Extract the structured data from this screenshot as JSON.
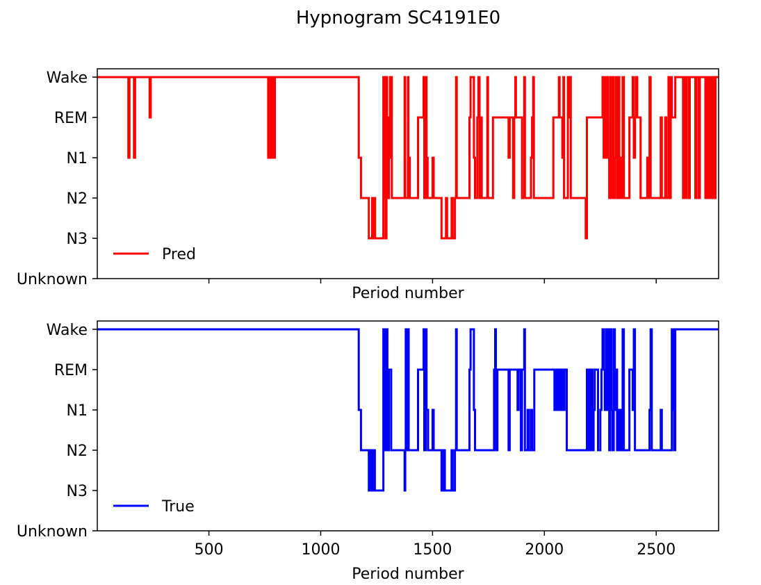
{
  "chart_data": {
    "type": "line",
    "title": "Hypnogram SC4191E0",
    "stage_order": [
      "Unknown",
      "N3",
      "N2",
      "N1",
      "REM",
      "Wake"
    ],
    "xlim": [
      1,
      2779
    ],
    "xticks": [
      500,
      1000,
      1500,
      2000,
      2500
    ],
    "subplots": [
      {
        "id": "pred",
        "xlabel": "Period number",
        "show_xtick_labels": false,
        "color": "#ff0000",
        "legend": {
          "label": "Pred",
          "loc": "lower-left"
        },
        "step_segments": [
          [
            1,
            "Wake"
          ],
          [
            140,
            "N1"
          ],
          [
            145,
            "Wake"
          ],
          [
            165,
            "N1"
          ],
          [
            170,
            "Wake"
          ],
          [
            235,
            "REM"
          ],
          [
            240,
            "Wake"
          ],
          [
            765,
            "N1"
          ],
          [
            770,
            "Wake"
          ],
          [
            772,
            "N1"
          ],
          [
            777,
            "Wake"
          ],
          [
            780,
            "N1"
          ],
          [
            785,
            "Wake"
          ],
          [
            788,
            "N1"
          ],
          [
            795,
            "Wake"
          ],
          [
            1170,
            "N1"
          ],
          [
            1180,
            "N2"
          ],
          [
            1215,
            "N3"
          ],
          [
            1230,
            "N2"
          ],
          [
            1233,
            "N3"
          ],
          [
            1240,
            "N2"
          ],
          [
            1243,
            "N3"
          ],
          [
            1280,
            "Wake"
          ],
          [
            1283,
            "N2"
          ],
          [
            1288,
            "Wake"
          ],
          [
            1290,
            "N3"
          ],
          [
            1294,
            "Wake"
          ],
          [
            1297,
            "N2"
          ],
          [
            1305,
            "REM"
          ],
          [
            1310,
            "Wake"
          ],
          [
            1312,
            "N1"
          ],
          [
            1315,
            "Wake"
          ],
          [
            1318,
            "N2"
          ],
          [
            1375,
            "Wake"
          ],
          [
            1378,
            "N2"
          ],
          [
            1390,
            "Wake"
          ],
          [
            1392,
            "N1"
          ],
          [
            1398,
            "N2"
          ],
          [
            1435,
            "REM"
          ],
          [
            1460,
            "Wake"
          ],
          [
            1463,
            "N2"
          ],
          [
            1470,
            "Wake"
          ],
          [
            1473,
            "N1"
          ],
          [
            1478,
            "N2"
          ],
          [
            1500,
            "N1"
          ],
          [
            1505,
            "N2"
          ],
          [
            1540,
            "N3"
          ],
          [
            1560,
            "N2"
          ],
          [
            1565,
            "N3"
          ],
          [
            1585,
            "N2"
          ],
          [
            1590,
            "N3"
          ],
          [
            1600,
            "N2"
          ],
          [
            1605,
            "Wake"
          ],
          [
            1608,
            "N2"
          ],
          [
            1665,
            "REM"
          ],
          [
            1670,
            "Wake"
          ],
          [
            1685,
            "N1"
          ],
          [
            1690,
            "N2"
          ],
          [
            1700,
            "REM"
          ],
          [
            1705,
            "Wake"
          ],
          [
            1710,
            "N2"
          ],
          [
            1715,
            "REM"
          ],
          [
            1720,
            "N2"
          ],
          [
            1745,
            "Wake"
          ],
          [
            1748,
            "N2"
          ],
          [
            1770,
            "REM"
          ],
          [
            1840,
            "N1"
          ],
          [
            1845,
            "REM"
          ],
          [
            1860,
            "N2"
          ],
          [
            1865,
            "REM"
          ],
          [
            1870,
            "Wake"
          ],
          [
            1873,
            "REM"
          ],
          [
            1900,
            "N2"
          ],
          [
            1910,
            "Wake"
          ],
          [
            1913,
            "N2"
          ],
          [
            1940,
            "N1"
          ],
          [
            1945,
            "REM"
          ],
          [
            1950,
            "Wake"
          ],
          [
            1953,
            "N2"
          ],
          [
            2040,
            "REM"
          ],
          [
            2065,
            "Wake"
          ],
          [
            2068,
            "REM"
          ],
          [
            2080,
            "N1"
          ],
          [
            2085,
            "Wake"
          ],
          [
            2088,
            "N2"
          ],
          [
            2105,
            "Wake"
          ],
          [
            2108,
            "REM"
          ],
          [
            2115,
            "Wake"
          ],
          [
            2118,
            "N2"
          ],
          [
            2185,
            "N3"
          ],
          [
            2190,
            "REM"
          ],
          [
            2260,
            "Wake"
          ],
          [
            2265,
            "N1"
          ],
          [
            2270,
            "Wake"
          ],
          [
            2275,
            "N1"
          ],
          [
            2280,
            "Wake"
          ],
          [
            2285,
            "N1"
          ],
          [
            2290,
            "N2"
          ],
          [
            2295,
            "Wake"
          ],
          [
            2300,
            "N2"
          ],
          [
            2305,
            "Wake"
          ],
          [
            2310,
            "N2"
          ],
          [
            2315,
            "N1"
          ],
          [
            2320,
            "Wake"
          ],
          [
            2325,
            "N2"
          ],
          [
            2330,
            "Wake"
          ],
          [
            2335,
            "N2"
          ],
          [
            2340,
            "N1"
          ],
          [
            2345,
            "N2"
          ],
          [
            2350,
            "Wake"
          ],
          [
            2355,
            "N2"
          ],
          [
            2380,
            "REM"
          ],
          [
            2395,
            "Wake"
          ],
          [
            2400,
            "N1"
          ],
          [
            2405,
            "REM"
          ],
          [
            2410,
            "Wake"
          ],
          [
            2415,
            "REM"
          ],
          [
            2430,
            "N2"
          ],
          [
            2460,
            "N1"
          ],
          [
            2465,
            "N2"
          ],
          [
            2470,
            "Wake"
          ],
          [
            2475,
            "N2"
          ],
          [
            2520,
            "REM"
          ],
          [
            2525,
            "N2"
          ],
          [
            2540,
            "REM"
          ],
          [
            2545,
            "N2"
          ],
          [
            2555,
            "Wake"
          ],
          [
            2560,
            "N2"
          ],
          [
            2565,
            "Wake"
          ],
          [
            2570,
            "REM"
          ],
          [
            2585,
            "Wake"
          ],
          [
            2620,
            "N2"
          ],
          [
            2625,
            "Wake"
          ],
          [
            2630,
            "N2"
          ],
          [
            2635,
            "Wake"
          ],
          [
            2645,
            "N2"
          ],
          [
            2650,
            "Wake"
          ],
          [
            2675,
            "N2"
          ],
          [
            2680,
            "Wake"
          ],
          [
            2690,
            "N2"
          ],
          [
            2695,
            "Wake"
          ],
          [
            2720,
            "N2"
          ],
          [
            2725,
            "Wake"
          ],
          [
            2730,
            "N2"
          ],
          [
            2735,
            "Wake"
          ],
          [
            2740,
            "N2"
          ],
          [
            2745,
            "Wake"
          ],
          [
            2750,
            "N2"
          ],
          [
            2755,
            "Wake"
          ],
          [
            2760,
            "N2"
          ],
          [
            2765,
            "Wake"
          ],
          [
            2779,
            "Wake"
          ]
        ]
      },
      {
        "id": "true",
        "xlabel": "Period number",
        "show_xtick_labels": true,
        "color": "#0000ff",
        "legend": {
          "label": "True",
          "loc": "lower-left"
        },
        "step_segments": [
          [
            1,
            "Wake"
          ],
          [
            1170,
            "N1"
          ],
          [
            1180,
            "N2"
          ],
          [
            1215,
            "N3"
          ],
          [
            1220,
            "N2"
          ],
          [
            1222,
            "N3"
          ],
          [
            1230,
            "N2"
          ],
          [
            1232,
            "N3"
          ],
          [
            1240,
            "N2"
          ],
          [
            1242,
            "N3"
          ],
          [
            1280,
            "Wake"
          ],
          [
            1283,
            "N2"
          ],
          [
            1287,
            "Wake"
          ],
          [
            1290,
            "N2"
          ],
          [
            1295,
            "Wake"
          ],
          [
            1298,
            "N2"
          ],
          [
            1305,
            "REM"
          ],
          [
            1315,
            "N2"
          ],
          [
            1375,
            "N3"
          ],
          [
            1378,
            "N2"
          ],
          [
            1380,
            "Wake"
          ],
          [
            1383,
            "N2"
          ],
          [
            1390,
            "Wake"
          ],
          [
            1393,
            "N2"
          ],
          [
            1435,
            "REM"
          ],
          [
            1460,
            "Wake"
          ],
          [
            1463,
            "N2"
          ],
          [
            1470,
            "Wake"
          ],
          [
            1473,
            "N1"
          ],
          [
            1480,
            "N2"
          ],
          [
            1500,
            "N1"
          ],
          [
            1505,
            "N2"
          ],
          [
            1540,
            "N3"
          ],
          [
            1545,
            "N2"
          ],
          [
            1548,
            "N3"
          ],
          [
            1552,
            "N2"
          ],
          [
            1555,
            "N3"
          ],
          [
            1585,
            "N2"
          ],
          [
            1590,
            "N3"
          ],
          [
            1600,
            "N2"
          ],
          [
            1605,
            "Wake"
          ],
          [
            1608,
            "N2"
          ],
          [
            1665,
            "REM"
          ],
          [
            1670,
            "Wake"
          ],
          [
            1685,
            "N1"
          ],
          [
            1690,
            "N2"
          ],
          [
            1775,
            "REM"
          ],
          [
            1780,
            "Wake"
          ],
          [
            1783,
            "N2"
          ],
          [
            1790,
            "REM"
          ],
          [
            1840,
            "N2"
          ],
          [
            1845,
            "REM"
          ],
          [
            1880,
            "N1"
          ],
          [
            1885,
            "REM"
          ],
          [
            1895,
            "N2"
          ],
          [
            1900,
            "REM"
          ],
          [
            1910,
            "Wake"
          ],
          [
            1913,
            "N2"
          ],
          [
            1925,
            "N1"
          ],
          [
            1930,
            "N2"
          ],
          [
            1940,
            "N1"
          ],
          [
            1945,
            "N2"
          ],
          [
            1955,
            "REM"
          ],
          [
            2045,
            "N1"
          ],
          [
            2050,
            "REM"
          ],
          [
            2055,
            "N1"
          ],
          [
            2060,
            "REM"
          ],
          [
            2065,
            "N1"
          ],
          [
            2070,
            "REM"
          ],
          [
            2075,
            "N1"
          ],
          [
            2080,
            "REM"
          ],
          [
            2085,
            "N1"
          ],
          [
            2090,
            "REM"
          ],
          [
            2100,
            "N2"
          ],
          [
            2190,
            "REM"
          ],
          [
            2195,
            "N2"
          ],
          [
            2200,
            "REM"
          ],
          [
            2205,
            "N2"
          ],
          [
            2210,
            "REM"
          ],
          [
            2215,
            "N2"
          ],
          [
            2220,
            "N1"
          ],
          [
            2225,
            "REM"
          ],
          [
            2240,
            "N2"
          ],
          [
            2250,
            "N1"
          ],
          [
            2255,
            "REM"
          ],
          [
            2260,
            "Wake"
          ],
          [
            2265,
            "REM"
          ],
          [
            2270,
            "N1"
          ],
          [
            2275,
            "Wake"
          ],
          [
            2280,
            "N1"
          ],
          [
            2285,
            "Wake"
          ],
          [
            2290,
            "N2"
          ],
          [
            2295,
            "Wake"
          ],
          [
            2300,
            "N1"
          ],
          [
            2305,
            "N2"
          ],
          [
            2310,
            "Wake"
          ],
          [
            2315,
            "N1"
          ],
          [
            2320,
            "REM"
          ],
          [
            2325,
            "N2"
          ],
          [
            2330,
            "N1"
          ],
          [
            2335,
            "N2"
          ],
          [
            2340,
            "N1"
          ],
          [
            2345,
            "N2"
          ],
          [
            2350,
            "Wake"
          ],
          [
            2355,
            "N2"
          ],
          [
            2380,
            "REM"
          ],
          [
            2395,
            "N1"
          ],
          [
            2400,
            "Wake"
          ],
          [
            2405,
            "N2"
          ],
          [
            2470,
            "N1"
          ],
          [
            2475,
            "Wake"
          ],
          [
            2480,
            "N2"
          ],
          [
            2520,
            "N1"
          ],
          [
            2525,
            "N2"
          ],
          [
            2570,
            "Wake"
          ],
          [
            2573,
            "N1"
          ],
          [
            2578,
            "Wake"
          ],
          [
            2580,
            "N2"
          ],
          [
            2585,
            "Wake"
          ],
          [
            2779,
            "Wake"
          ]
        ]
      }
    ]
  }
}
